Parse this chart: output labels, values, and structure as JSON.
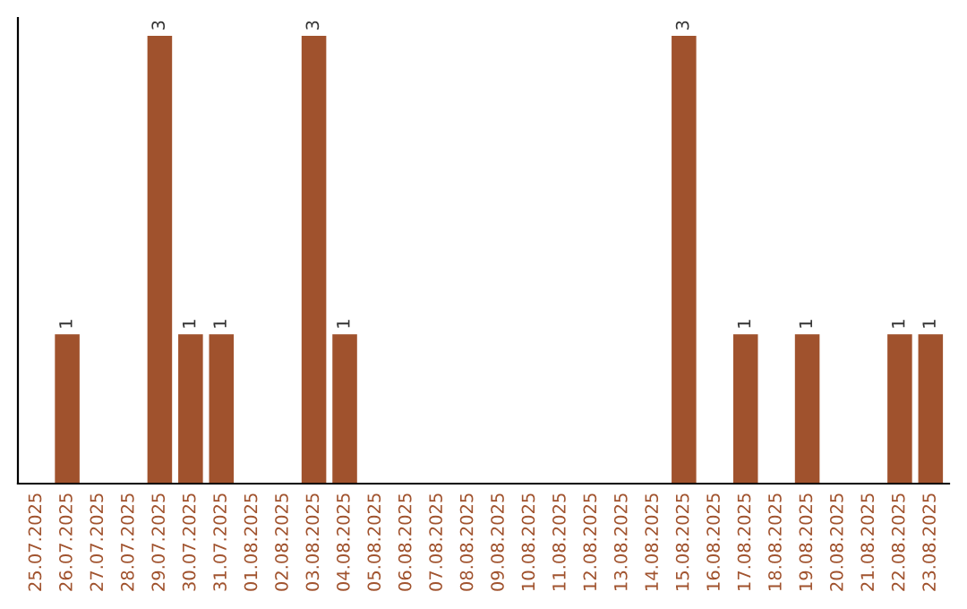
{
  "chart_data": {
    "type": "bar",
    "categories": [
      "25.07.2025",
      "26.07.2025",
      "27.07.2025",
      "28.07.2025",
      "29.07.2025",
      "30.07.2025",
      "31.07.2025",
      "01.08.2025",
      "02.08.2025",
      "03.08.2025",
      "04.08.2025",
      "05.08.2025",
      "06.08.2025",
      "07.08.2025",
      "08.08.2025",
      "09.08.2025",
      "10.08.2025",
      "11.08.2025",
      "12.08.2025",
      "13.08.2025",
      "14.08.2025",
      "15.08.2025",
      "16.08.2025",
      "17.08.2025",
      "18.08.2025",
      "19.08.2025",
      "20.08.2025",
      "21.08.2025",
      "22.08.2025",
      "23.08.2025"
    ],
    "values": [
      0,
      1,
      0,
      0,
      3,
      1,
      1,
      0,
      0,
      3,
      1,
      0,
      0,
      0,
      0,
      0,
      0,
      0,
      0,
      0,
      0,
      3,
      0,
      1,
      0,
      1,
      0,
      0,
      1,
      1
    ],
    "color": "#a0522d",
    "value_labels": [
      null,
      "1",
      null,
      null,
      "3",
      "1",
      "1",
      null,
      null,
      "3",
      "1",
      null,
      null,
      null,
      null,
      null,
      null,
      null,
      null,
      null,
      null,
      "3",
      null,
      "1",
      null,
      "1",
      null,
      null,
      "1",
      "1"
    ],
    "tick_labels": "x",
    "grid": false,
    "legend": false
  }
}
